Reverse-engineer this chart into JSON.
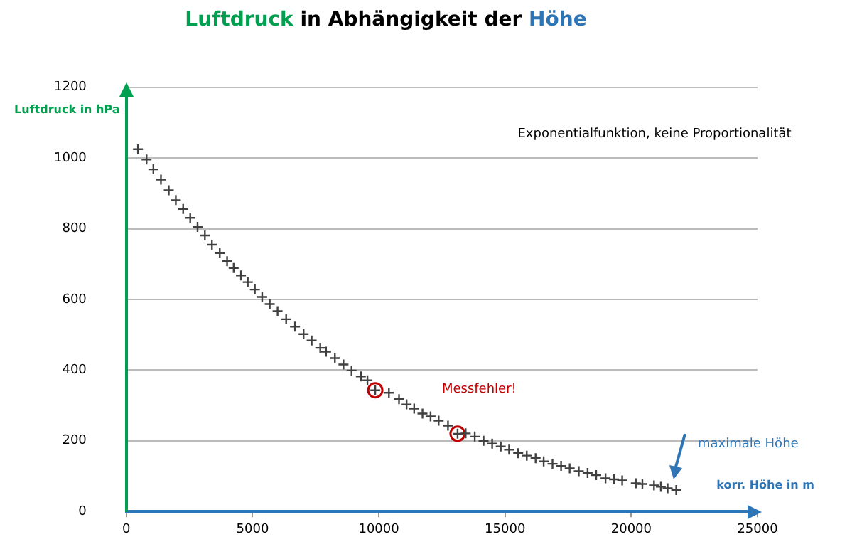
{
  "chart_data": {
    "type": "scatter",
    "title": "Luftdruck in Abhängigkeit der Höhe",
    "xlabel": "korr. Höhe in m",
    "ylabel": "Luftdruck in hPa",
    "annotations": [
      "Exponentialfunktion, keine Proportionalität",
      "Messfehler!",
      "maximale Höhe"
    ],
    "series": [
      {
        "color": "#404040",
        "marker": "cross",
        "x": [
          460,
          800,
          1070,
          1370,
          1680,
          1960,
          2250,
          2530,
          2820,
          3110,
          3390,
          3700,
          3990,
          4250,
          4540,
          4810,
          5090,
          5380,
          5680,
          5990,
          6330,
          6680,
          7020,
          7340,
          7680,
          7910,
          8260,
          8600,
          8920,
          9290,
          9550,
          9860,
          10400,
          10800,
          11100,
          11400,
          11730,
          12050,
          12370,
          12740,
          13120,
          13440,
          13800,
          14150,
          14490,
          14830,
          15160,
          15520,
          15860,
          16210,
          16530,
          16880,
          17220,
          17560,
          17920,
          18270,
          18610,
          18980,
          19320,
          19640,
          20180,
          20440,
          20900,
          21170,
          21440,
          21780
        ],
        "values": [
          1025,
          996,
          968,
          939,
          909,
          881,
          856,
          831,
          805,
          781,
          755,
          731,
          708,
          689,
          668,
          649,
          628,
          607,
          587,
          567,
          544,
          523,
          502,
          484,
          463,
          452,
          434,
          416,
          399,
          382,
          371,
          343,
          336,
          318,
          303,
          291,
          277,
          269,
          257,
          243,
          220,
          221,
          212,
          200,
          192,
          184,
          175,
          165,
          158,
          151,
          142,
          135,
          129,
          122,
          114,
          109,
          103,
          94,
          91,
          88,
          80,
          78,
          74,
          70,
          66,
          61
        ]
      },
      {
        "color": "#c00000",
        "marker": "circle",
        "x": [
          9860,
          13120
        ],
        "values": [
          343,
          220
        ]
      }
    ],
    "xlim": [
      0,
      25000
    ],
    "xticks": [
      0,
      5000,
      10000,
      15000,
      20000,
      25000
    ],
    "ylim": [
      0,
      1200
    ],
    "yticks": [
      0,
      200,
      400,
      600,
      800,
      1000,
      1200
    ],
    "grid": "y",
    "legend": false
  }
}
